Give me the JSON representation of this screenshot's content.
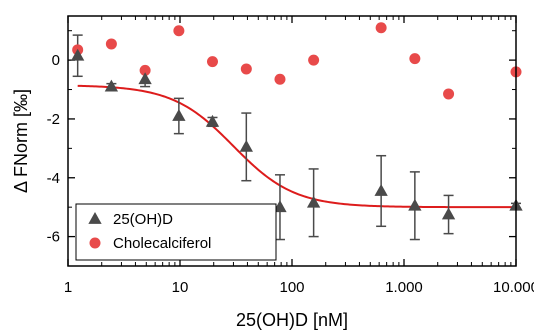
{
  "chart_data": {
    "type": "scatter",
    "xlabel": "25(OH)D [nM]",
    "ylabel": "Δ FNorm [‰]",
    "xscale": "log",
    "xlim": [
      1,
      10000
    ],
    "ylim": [
      -7,
      1.5
    ],
    "x_ticks": [
      {
        "value": 1,
        "label": "1"
      },
      {
        "value": 10,
        "label": "10"
      },
      {
        "value": 100,
        "label": "100"
      },
      {
        "value": 1000,
        "label": "1.000"
      },
      {
        "value": 10000,
        "label": "10.000"
      }
    ],
    "y_ticks": [
      {
        "value": 0,
        "label": "0"
      },
      {
        "value": -2,
        "label": "-2"
      },
      {
        "value": -4,
        "label": "-4"
      },
      {
        "value": -6,
        "label": "-6"
      }
    ],
    "grid": false,
    "legend_position": "bottom-left",
    "series": [
      {
        "name": "25(OH)D",
        "marker": "triangle",
        "color": "#4a4a4a",
        "points": [
          {
            "x": 1.22,
            "y": 0.15,
            "err": 0.7
          },
          {
            "x": 2.44,
            "y": -0.9,
            "err": 0.1
          },
          {
            "x": 4.88,
            "y": -0.65,
            "err": 0.25
          },
          {
            "x": 9.77,
            "y": -1.9,
            "err": 0.6
          },
          {
            "x": 19.5,
            "y": -2.1,
            "err": 0.15
          },
          {
            "x": 39.1,
            "y": -2.95,
            "err": 1.15
          },
          {
            "x": 78.1,
            "y": -5.0,
            "err": 1.1
          },
          {
            "x": 156,
            "y": -4.85,
            "err": 1.15
          },
          {
            "x": 625,
            "y": -4.45,
            "err": 1.2
          },
          {
            "x": 1250,
            "y": -4.95,
            "err": 1.15
          },
          {
            "x": 2500,
            "y": -5.25,
            "err": 0.65
          },
          {
            "x": 10000,
            "y": -4.95,
            "err": 0.08
          }
        ]
      },
      {
        "name": "Cholecalciferol",
        "marker": "circle",
        "color": "#e84a4a",
        "points": [
          {
            "x": 1.22,
            "y": 0.35
          },
          {
            "x": 2.44,
            "y": 0.55
          },
          {
            "x": 4.88,
            "y": -0.35
          },
          {
            "x": 9.77,
            "y": 1.0
          },
          {
            "x": 19.5,
            "y": -0.05
          },
          {
            "x": 39.1,
            "y": -0.3
          },
          {
            "x": 78.1,
            "y": -0.65
          },
          {
            "x": 156,
            "y": 0.0
          },
          {
            "x": 625,
            "y": 1.1
          },
          {
            "x": 1250,
            "y": 0.05
          },
          {
            "x": 2500,
            "y": -1.15
          },
          {
            "x": 10000,
            "y": -0.4
          }
        ]
      }
    ],
    "fit": {
      "type": "sigmoid",
      "color": "#dd1c1c",
      "top": -0.85,
      "bottom": -5.0,
      "ec50": 30,
      "hill": 1.6,
      "xlim": [
        1.22,
        10000
      ]
    }
  }
}
